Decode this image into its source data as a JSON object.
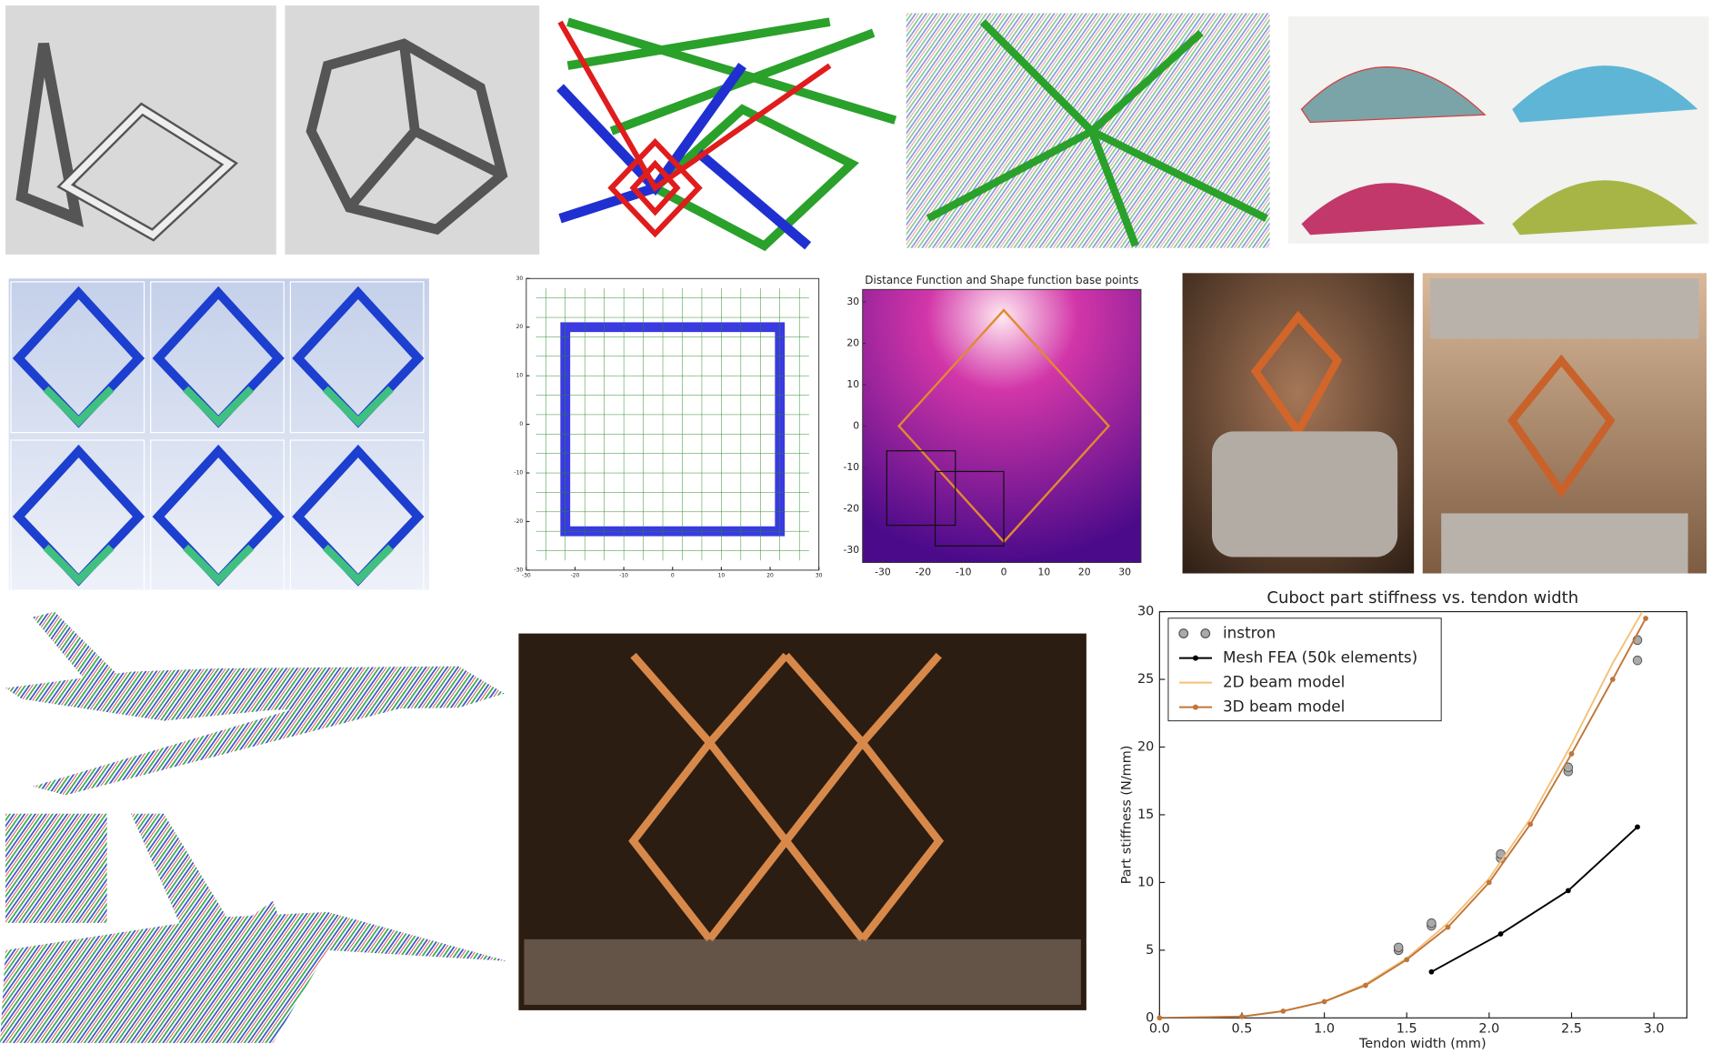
{
  "panels": {
    "mesh_plot": {
      "xlim": [
        -30,
        30
      ],
      "ylim": [
        -30,
        30
      ],
      "xticks": [
        -30,
        -20,
        -10,
        0,
        10,
        20,
        30
      ],
      "yticks": [
        -30,
        -20,
        -10,
        0,
        10,
        20,
        30
      ]
    },
    "distance_plot": {
      "title": "Distance Function and Shape function base points",
      "xlim": [
        -35,
        34
      ],
      "ylim": [
        -33,
        33
      ],
      "xticks": [
        -30,
        -20,
        -10,
        0,
        10,
        20,
        30
      ],
      "yticks": [
        -30,
        -20,
        -10,
        0,
        10,
        20,
        30
      ]
    }
  },
  "chart_data": {
    "type": "line",
    "title": "Cuboct part stiffness vs. tendon width",
    "x_label": "Tendon width (mm)",
    "y_label": "Part stiffness (N/mm)",
    "xlim": [
      0,
      3.2
    ],
    "ylim": [
      0,
      30
    ],
    "xticks": [
      {
        "value": 0,
        "label": "0.0"
      },
      0.5,
      {
        "value": 1,
        "label": "1.0"
      },
      1.5,
      {
        "value": 2,
        "label": "2.0"
      },
      2.5,
      {
        "value": 3,
        "label": "3.0"
      }
    ],
    "yticks": [
      0,
      5,
      10,
      15,
      20,
      25,
      30
    ],
    "grid": false,
    "legend": "upper left",
    "series": [
      {
        "name": "instron",
        "color": "#aaaaaa",
        "style": "markers",
        "x": [
          1.45,
          1.45,
          1.65,
          1.65,
          2.07,
          2.07,
          2.48,
          2.48,
          2.9,
          2.9
        ],
        "values": [
          5.0,
          5.2,
          6.8,
          7.0,
          11.8,
          12.1,
          18.2,
          18.5,
          26.4,
          27.9
        ]
      },
      {
        "name": "Mesh FEA (50k elements)",
        "color": "#000000",
        "style": "line+markers",
        "x": [
          1.65,
          2.07,
          2.48,
          2.9
        ],
        "values": [
          3.4,
          6.2,
          9.4,
          14.1
        ]
      },
      {
        "name": "2D beam model",
        "color": "#f5c07a",
        "style": "line",
        "x": [
          0,
          0.5,
          0.75,
          1.0,
          1.25,
          1.5,
          1.75,
          2.0,
          2.25,
          2.5,
          2.75,
          2.93
        ],
        "values": [
          0,
          0.1,
          0.5,
          1.2,
          2.5,
          4.4,
          7.0,
          10.3,
          14.7,
          20.2,
          26.2,
          30
        ]
      },
      {
        "name": "3D beam model",
        "color": "#c0763a",
        "style": "line+markers",
        "x": [
          0,
          0.5,
          0.75,
          1.0,
          1.25,
          1.5,
          1.75,
          2.0,
          2.25,
          2.5,
          2.75,
          2.95
        ],
        "values": [
          0,
          0.1,
          0.5,
          1.2,
          2.4,
          4.3,
          6.7,
          10.0,
          14.3,
          19.5,
          25.0,
          29.5
        ]
      }
    ]
  }
}
